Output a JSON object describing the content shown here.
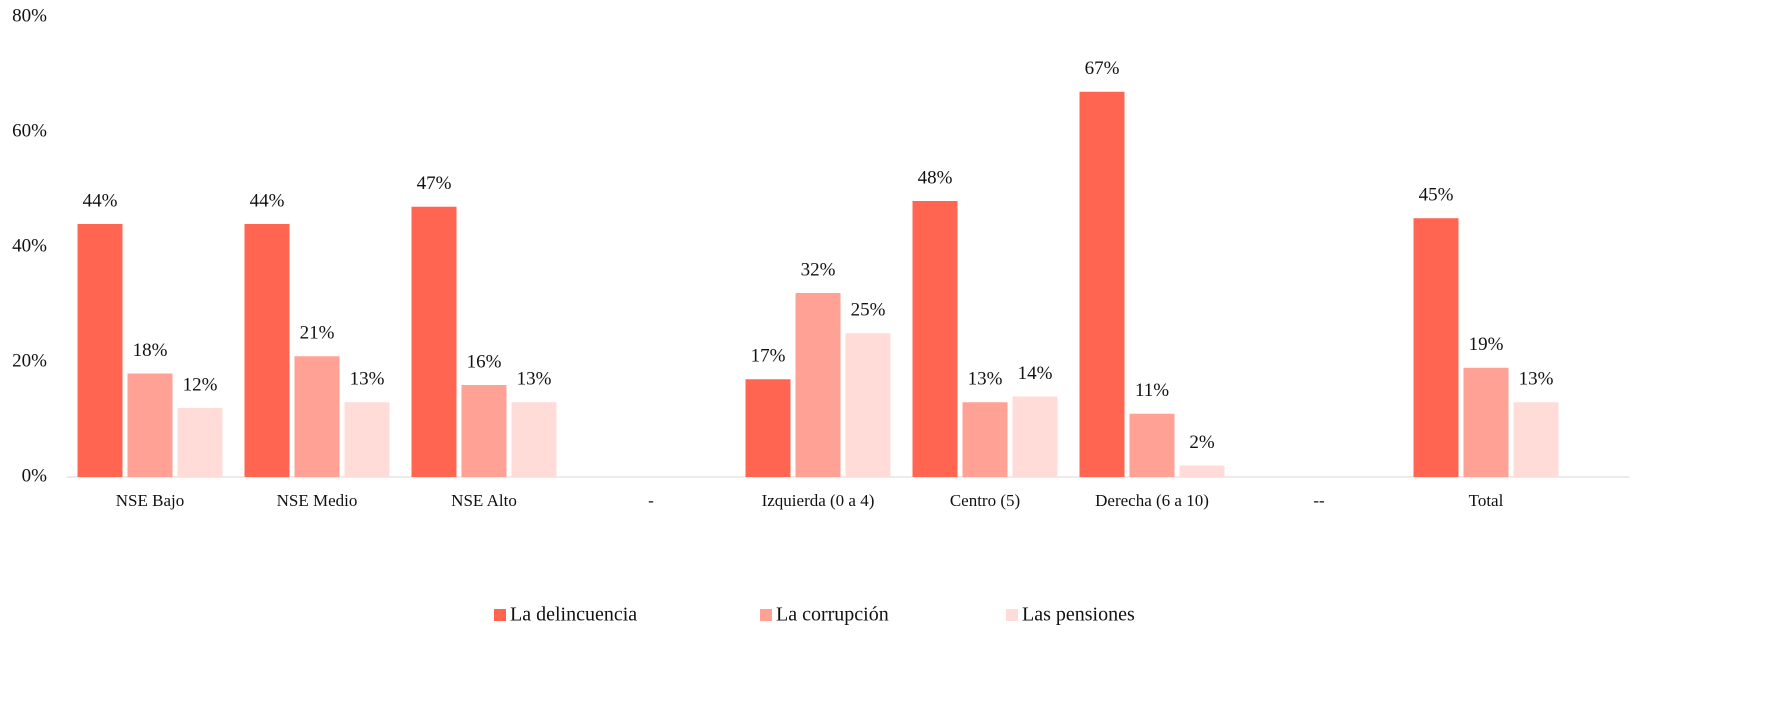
{
  "chart_data": {
    "type": "bar",
    "categories": [
      "NSE Bajo",
      "NSE Medio",
      "NSE Alto",
      "-",
      "Izquierda (0 a 4)",
      "Centro (5)",
      "Derecha (6 a 10)",
      "--",
      "Total"
    ],
    "series": [
      {
        "name": "La delincuencia",
        "color": "#ff6550",
        "values": [
          44,
          44,
          47,
          null,
          17,
          48,
          67,
          null,
          45
        ],
        "value_labels": [
          "44%",
          "44%",
          "47%",
          null,
          "17%",
          "48%",
          "67%",
          null,
          "45%"
        ]
      },
      {
        "name": "La corrupción",
        "color": "#ffa295",
        "values": [
          18,
          21,
          16,
          null,
          32,
          13,
          11,
          null,
          19
        ],
        "value_labels": [
          "18%",
          "21%",
          "16%",
          null,
          "32%",
          "13%",
          "11%",
          null,
          "19%"
        ]
      },
      {
        "name": "Las pensiones",
        "color": "#ffdcd8",
        "values": [
          12,
          13,
          13,
          null,
          25,
          14,
          2,
          null,
          13
        ],
        "value_labels": [
          "12%",
          "13%",
          "13%",
          null,
          "25%",
          "14%",
          "2%",
          null,
          "13%"
        ]
      }
    ],
    "ylim": [
      0,
      80
    ],
    "yticks": [
      {
        "value": 0,
        "label": "0%"
      },
      {
        "value": 20,
        "label": "20%"
      },
      {
        "value": 40,
        "label": "40%"
      },
      {
        "value": 60,
        "label": "60%"
      },
      {
        "value": 80,
        "label": "80%"
      }
    ],
    "legend": "bottom"
  }
}
